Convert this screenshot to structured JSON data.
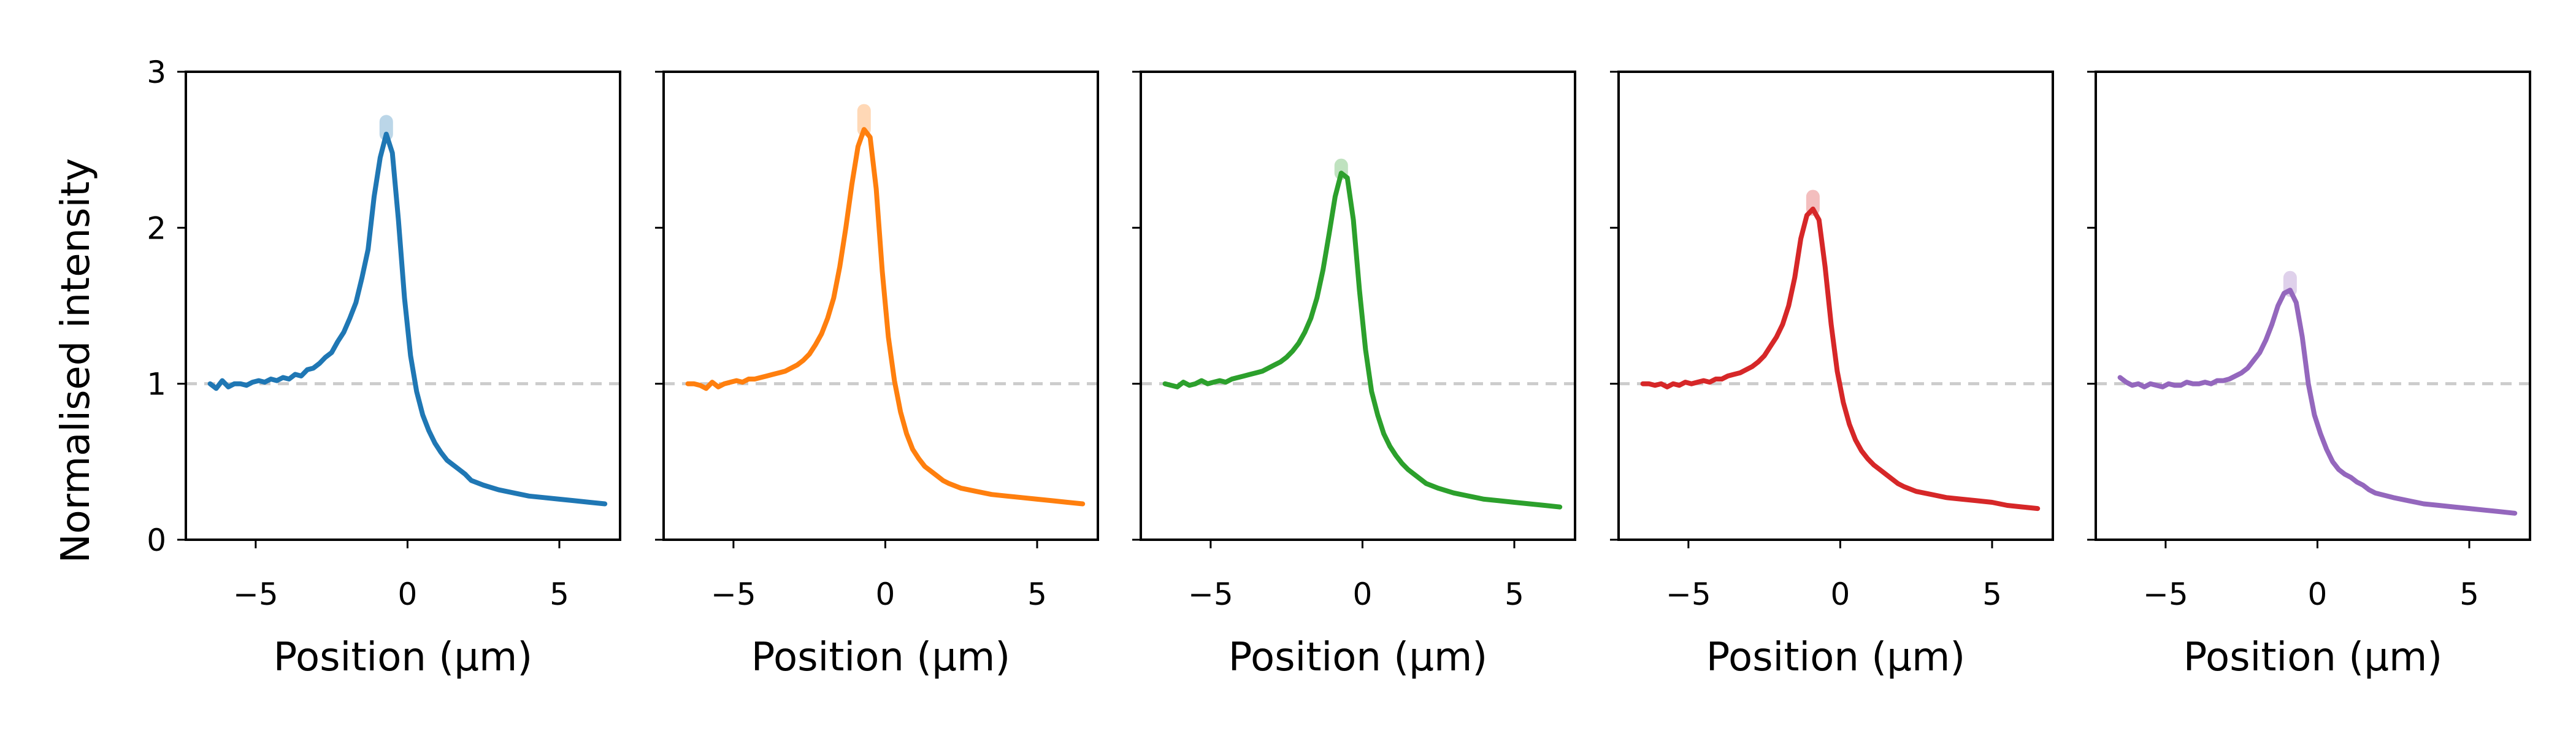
{
  "figure": {
    "ylabel": "Normalised intensity",
    "reference_line": {
      "y": 1,
      "color": "#cccccc",
      "style": "dashed"
    }
  },
  "chart_data": [
    {
      "type": "line",
      "color": "#1f77b4",
      "xlabel": "Position (µm)",
      "ylabel": "Normalised intensity",
      "xlim": [
        -7.3,
        7.0
      ],
      "ylim": [
        0,
        3
      ],
      "xticks": [
        -5,
        0,
        5
      ],
      "yticks": [
        0,
        1,
        2,
        3
      ],
      "xtick_labels": [
        "−5",
        "0",
        "5"
      ],
      "ytick_labels": [
        "0",
        "1",
        "2",
        "3"
      ],
      "peak_band_top": 2.68,
      "x": [
        -6.5,
        -6.3,
        -6.1,
        -5.9,
        -5.7,
        -5.5,
        -5.3,
        -5.1,
        -4.9,
        -4.7,
        -4.5,
        -4.3,
        -4.1,
        -3.9,
        -3.7,
        -3.5,
        -3.3,
        -3.1,
        -2.9,
        -2.7,
        -2.5,
        -2.3,
        -2.1,
        -1.9,
        -1.7,
        -1.5,
        -1.3,
        -1.1,
        -0.9,
        -0.7,
        -0.5,
        -0.3,
        -0.1,
        0.1,
        0.3,
        0.5,
        0.7,
        0.9,
        1.1,
        1.3,
        1.5,
        1.7,
        1.9,
        2.1,
        2.5,
        3.0,
        3.5,
        4.0,
        4.5,
        5.0,
        5.5,
        6.0,
        6.5
      ],
      "y": [
        1.0,
        0.97,
        1.02,
        0.98,
        1.0,
        1.0,
        0.99,
        1.01,
        1.02,
        1.01,
        1.03,
        1.02,
        1.04,
        1.03,
        1.06,
        1.05,
        1.09,
        1.1,
        1.13,
        1.17,
        1.2,
        1.27,
        1.33,
        1.42,
        1.52,
        1.68,
        1.86,
        2.2,
        2.45,
        2.6,
        2.48,
        2.05,
        1.55,
        1.18,
        0.95,
        0.8,
        0.7,
        0.62,
        0.56,
        0.51,
        0.48,
        0.45,
        0.42,
        0.38,
        0.35,
        0.32,
        0.3,
        0.28,
        0.27,
        0.26,
        0.25,
        0.24,
        0.23
      ]
    },
    {
      "type": "line",
      "color": "#ff7f0e",
      "xlabel": "Position (µm)",
      "ylabel": "",
      "xlim": [
        -7.3,
        7.0
      ],
      "ylim": [
        0,
        3
      ],
      "xticks": [
        -5,
        0,
        5
      ],
      "yticks": [
        0,
        1,
        2,
        3
      ],
      "xtick_labels": [
        "−5",
        "0",
        "5"
      ],
      "ytick_labels": [],
      "peak_band_top": 2.75,
      "x": [
        -6.5,
        -6.3,
        -6.1,
        -5.9,
        -5.7,
        -5.5,
        -5.3,
        -5.1,
        -4.9,
        -4.7,
        -4.5,
        -4.3,
        -4.1,
        -3.9,
        -3.7,
        -3.5,
        -3.3,
        -3.1,
        -2.9,
        -2.7,
        -2.5,
        -2.3,
        -2.1,
        -1.9,
        -1.7,
        -1.5,
        -1.3,
        -1.1,
        -0.9,
        -0.7,
        -0.5,
        -0.3,
        -0.1,
        0.1,
        0.3,
        0.5,
        0.7,
        0.9,
        1.1,
        1.3,
        1.5,
        1.7,
        1.9,
        2.1,
        2.5,
        3.0,
        3.5,
        4.0,
        4.5,
        5.0,
        5.5,
        6.0,
        6.5
      ],
      "y": [
        1.0,
        1.0,
        0.99,
        0.97,
        1.01,
        0.98,
        1.0,
        1.01,
        1.02,
        1.01,
        1.03,
        1.03,
        1.04,
        1.05,
        1.06,
        1.07,
        1.08,
        1.1,
        1.12,
        1.15,
        1.19,
        1.25,
        1.32,
        1.42,
        1.55,
        1.75,
        2.0,
        2.28,
        2.52,
        2.63,
        2.58,
        2.25,
        1.72,
        1.3,
        1.02,
        0.82,
        0.68,
        0.58,
        0.52,
        0.47,
        0.44,
        0.41,
        0.38,
        0.36,
        0.33,
        0.31,
        0.29,
        0.28,
        0.27,
        0.26,
        0.25,
        0.24,
        0.23
      ]
    },
    {
      "type": "line",
      "color": "#2ca02c",
      "xlabel": "Position (µm)",
      "ylabel": "",
      "xlim": [
        -7.3,
        7.0
      ],
      "ylim": [
        0,
        3
      ],
      "xticks": [
        -5,
        0,
        5
      ],
      "yticks": [
        0,
        1,
        2,
        3
      ],
      "xtick_labels": [
        "−5",
        "0",
        "5"
      ],
      "ytick_labels": [],
      "peak_band_top": 2.4,
      "x": [
        -6.5,
        -6.3,
        -6.1,
        -5.9,
        -5.7,
        -5.5,
        -5.3,
        -5.1,
        -4.9,
        -4.7,
        -4.5,
        -4.3,
        -4.1,
        -3.9,
        -3.7,
        -3.5,
        -3.3,
        -3.1,
        -2.9,
        -2.7,
        -2.5,
        -2.3,
        -2.1,
        -1.9,
        -1.7,
        -1.5,
        -1.3,
        -1.1,
        -0.9,
        -0.7,
        -0.5,
        -0.3,
        -0.1,
        0.1,
        0.3,
        0.5,
        0.7,
        0.9,
        1.1,
        1.3,
        1.5,
        1.7,
        1.9,
        2.1,
        2.5,
        3.0,
        3.5,
        4.0,
        4.5,
        5.0,
        5.5,
        6.0,
        6.5
      ],
      "y": [
        1.0,
        0.99,
        0.98,
        1.01,
        0.99,
        1.0,
        1.02,
        1.0,
        1.01,
        1.02,
        1.01,
        1.03,
        1.04,
        1.05,
        1.06,
        1.07,
        1.08,
        1.1,
        1.12,
        1.14,
        1.17,
        1.21,
        1.26,
        1.33,
        1.42,
        1.55,
        1.73,
        1.96,
        2.2,
        2.35,
        2.32,
        2.05,
        1.6,
        1.22,
        0.95,
        0.8,
        0.68,
        0.6,
        0.54,
        0.49,
        0.45,
        0.42,
        0.39,
        0.36,
        0.33,
        0.3,
        0.28,
        0.26,
        0.25,
        0.24,
        0.23,
        0.22,
        0.21
      ]
    },
    {
      "type": "line",
      "color": "#d62728",
      "xlabel": "Position (µm)",
      "ylabel": "",
      "xlim": [
        -7.3,
        7.0
      ],
      "ylim": [
        0,
        3
      ],
      "xticks": [
        -5,
        0,
        5
      ],
      "yticks": [
        0,
        1,
        2,
        3
      ],
      "xtick_labels": [
        "−5",
        "0",
        "5"
      ],
      "ytick_labels": [],
      "peak_band_top": 2.2,
      "x": [
        -6.5,
        -6.3,
        -6.1,
        -5.9,
        -5.7,
        -5.5,
        -5.3,
        -5.1,
        -4.9,
        -4.7,
        -4.5,
        -4.3,
        -4.1,
        -3.9,
        -3.7,
        -3.5,
        -3.3,
        -3.1,
        -2.9,
        -2.7,
        -2.5,
        -2.3,
        -2.1,
        -1.9,
        -1.7,
        -1.5,
        -1.3,
        -1.1,
        -0.9,
        -0.7,
        -0.5,
        -0.3,
        -0.1,
        0.1,
        0.3,
        0.5,
        0.7,
        0.9,
        1.1,
        1.3,
        1.5,
        1.7,
        1.9,
        2.1,
        2.5,
        3.0,
        3.5,
        4.0,
        4.5,
        5.0,
        5.5,
        6.0,
        6.5
      ],
      "y": [
        1.0,
        1.0,
        0.99,
        1.0,
        0.98,
        1.0,
        0.99,
        1.01,
        1.0,
        1.01,
        1.02,
        1.01,
        1.03,
        1.03,
        1.05,
        1.06,
        1.07,
        1.09,
        1.11,
        1.14,
        1.18,
        1.24,
        1.3,
        1.38,
        1.5,
        1.68,
        1.93,
        2.08,
        2.12,
        2.05,
        1.75,
        1.38,
        1.08,
        0.88,
        0.74,
        0.64,
        0.57,
        0.52,
        0.48,
        0.45,
        0.42,
        0.39,
        0.36,
        0.34,
        0.31,
        0.29,
        0.27,
        0.26,
        0.25,
        0.24,
        0.22,
        0.21,
        0.2
      ]
    },
    {
      "type": "line",
      "color": "#9467bd",
      "xlabel": "Position (µm)",
      "ylabel": "",
      "xlim": [
        -7.3,
        7.0
      ],
      "ylim": [
        0,
        3
      ],
      "xticks": [
        -5,
        0,
        5
      ],
      "yticks": [
        0,
        1,
        2,
        3
      ],
      "xtick_labels": [
        "−5",
        "0",
        "5"
      ],
      "ytick_labels": [],
      "peak_band_top": 1.68,
      "x": [
        -6.5,
        -6.3,
        -6.1,
        -5.9,
        -5.7,
        -5.5,
        -5.3,
        -5.1,
        -4.9,
        -4.7,
        -4.5,
        -4.3,
        -4.1,
        -3.9,
        -3.7,
        -3.5,
        -3.3,
        -3.1,
        -2.9,
        -2.7,
        -2.5,
        -2.3,
        -2.1,
        -1.9,
        -1.7,
        -1.5,
        -1.3,
        -1.1,
        -0.9,
        -0.7,
        -0.5,
        -0.3,
        -0.1,
        0.1,
        0.3,
        0.5,
        0.7,
        0.9,
        1.1,
        1.3,
        1.5,
        1.7,
        1.9,
        2.1,
        2.5,
        3.0,
        3.5,
        4.0,
        4.5,
        5.0,
        5.5,
        6.0,
        6.5
      ],
      "y": [
        1.04,
        1.01,
        0.99,
        1.0,
        0.98,
        1.0,
        0.99,
        0.98,
        1.0,
        0.99,
        0.99,
        1.01,
        1.0,
        1.0,
        1.01,
        1.0,
        1.02,
        1.02,
        1.03,
        1.05,
        1.07,
        1.1,
        1.15,
        1.2,
        1.28,
        1.38,
        1.5,
        1.58,
        1.6,
        1.52,
        1.3,
        1.0,
        0.8,
        0.68,
        0.58,
        0.5,
        0.45,
        0.42,
        0.4,
        0.37,
        0.35,
        0.32,
        0.3,
        0.29,
        0.27,
        0.25,
        0.23,
        0.22,
        0.21,
        0.2,
        0.19,
        0.18,
        0.17
      ]
    }
  ]
}
